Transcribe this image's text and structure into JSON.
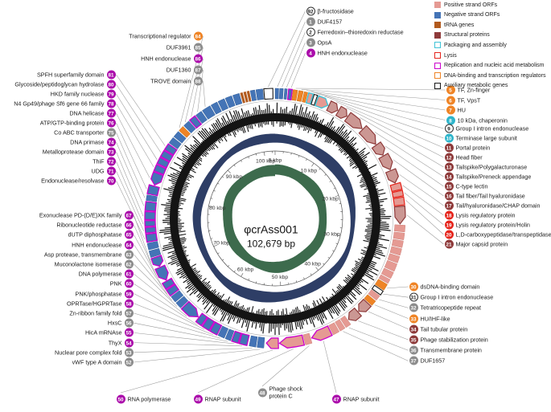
{
  "figure": {
    "center": {
      "name": "φcrAss001",
      "size": "102,679 bp"
    },
    "scale_ticks": [
      "0 kbp",
      "10 kbp",
      "20 kbp",
      "30 kbp",
      "40 kbp",
      "50 kbp",
      "60 kbp",
      "70 kbp",
      "80 kbp",
      "90 kbp",
      "100 kbp"
    ]
  },
  "colors": {
    "pos": "#e59a93",
    "neg": "#4474b6",
    "trna": "#b25a1d",
    "str_fill": "#cb9793",
    "str_stroke": "#8e3a3a",
    "pak_stroke": "#3fc3d7",
    "lys_stroke": "#e5251c",
    "rep_stroke": "#cc00cc",
    "reg": "#ef8426",
    "aux_stroke": "#1a1a1a",
    "navy_ring": "#2e3e66",
    "green_ring": "#3d6b4d",
    "badge": {
      "rep": "#ab0dab",
      "reg": "#ef8426",
      "str": "#8e3a3a",
      "pak": "#2fb5cb",
      "lys": "#e5251c",
      "plain": "#8c8c8c",
      "open": "#ffffff"
    }
  },
  "legend": {
    "items": [
      {
        "label": "Positive strand ORFs",
        "type": "fill",
        "color": "#e59a93"
      },
      {
        "label": "Negative strand ORFs",
        "type": "fill",
        "color": "#4474b6"
      },
      {
        "label": "tRNA genes",
        "type": "fill",
        "color": "#b25a1d"
      },
      {
        "label": "Structural proteins",
        "type": "fill",
        "color": "#8e3a3a"
      },
      {
        "label": "Packaging and assembly",
        "type": "outline",
        "color": "#3fc3d7"
      },
      {
        "label": "Lysis",
        "type": "outline",
        "color": "#e5251c"
      },
      {
        "label": "Replication and nucleic acid metabolism",
        "type": "outline",
        "color": "#cc00cc"
      },
      {
        "label": "DNA-binding and transcription regulators",
        "type": "outline",
        "color": "#ef8426"
      },
      {
        "label": "Auxiliary metabolic genes",
        "type": "outline",
        "color": "#1a1a1a"
      }
    ]
  },
  "genome_map": {
    "segments": [
      [
        355,
        359,
        "aux"
      ],
      [
        0,
        1.6,
        "neg"
      ],
      [
        2,
        3.6,
        "neg"
      ],
      [
        4.2,
        5.4,
        "neg"
      ],
      [
        6,
        7.6,
        "rep_neg"
      ],
      [
        8,
        10,
        "reg"
      ],
      [
        10.5,
        12.5,
        "reg"
      ],
      [
        13,
        14.5,
        "reg"
      ],
      [
        15,
        17,
        "pak"
      ],
      [
        17.5,
        19,
        "aux"
      ],
      [
        19.5,
        25,
        "pak"
      ],
      [
        25.5,
        30,
        "str"
      ],
      [
        30.5,
        35,
        "str"
      ],
      [
        35.5,
        44,
        "str"
      ],
      [
        44.5,
        53.5,
        "str"
      ],
      [
        54,
        59.5,
        "str"
      ],
      [
        60,
        67,
        "str"
      ],
      [
        67.5,
        73.5,
        "str"
      ],
      [
        74,
        77,
        "lys"
      ],
      [
        77.5,
        80,
        "lys"
      ],
      [
        80.5,
        84,
        "lys"
      ],
      [
        84.5,
        92.5,
        "str"
      ],
      [
        93,
        96,
        "pos"
      ],
      [
        96.5,
        99.5,
        "pos"
      ],
      [
        100,
        103,
        "pos"
      ],
      [
        103.5,
        106.5,
        "pos"
      ],
      [
        107,
        110,
        "pos"
      ],
      [
        110.5,
        114,
        "pos"
      ],
      [
        114.5,
        117.5,
        "pos"
      ],
      [
        118,
        120,
        "pos"
      ],
      [
        120.5,
        123.5,
        "reg"
      ],
      [
        124,
        126,
        "aux"
      ],
      [
        126.5,
        129,
        "pos"
      ],
      [
        129.5,
        132,
        "reg"
      ],
      [
        132.5,
        138,
        "str"
      ],
      [
        138.5,
        144,
        "str"
      ],
      [
        144.5,
        147,
        "pos"
      ],
      [
        147.5,
        150,
        "pos"
      ],
      [
        150.5,
        153.5,
        "pos"
      ],
      [
        154,
        163,
        "rep_pos"
      ],
      [
        163.5,
        166.5,
        "pos"
      ],
      [
        167,
        178,
        "rep_pos"
      ],
      [
        178.5,
        184,
        "rep_pos"
      ],
      [
        185,
        188,
        "neg"
      ],
      [
        188.5,
        191.5,
        "neg"
      ],
      [
        192.5,
        196,
        "rep_neg"
      ],
      [
        196.5,
        199.5,
        "rep_neg"
      ],
      [
        200,
        202.5,
        "neg"
      ],
      [
        203,
        206,
        "neg"
      ],
      [
        206.5,
        210,
        "rep_neg"
      ],
      [
        210.5,
        214,
        "rep_neg"
      ],
      [
        214.5,
        217.5,
        "rep_neg"
      ],
      [
        218,
        226,
        "rep_neg"
      ],
      [
        226.5,
        229.5,
        "neg"
      ],
      [
        230,
        233,
        "neg"
      ],
      [
        233.5,
        236.5,
        "rep_neg"
      ],
      [
        237,
        240,
        "rep_neg"
      ],
      [
        240.5,
        247,
        "rep_neg"
      ],
      [
        247.5,
        252,
        "rep_neg"
      ],
      [
        252.5,
        255.5,
        "neg"
      ],
      [
        256,
        259,
        "neg"
      ],
      [
        259.5,
        263,
        "rep_neg"
      ],
      [
        263.5,
        266,
        "rep_neg"
      ],
      [
        266.5,
        269,
        "rep_neg"
      ],
      [
        269.5,
        273,
        "rep_neg"
      ],
      [
        273.5,
        277.5,
        "rep_neg"
      ],
      [
        278,
        280.5,
        "neg"
      ],
      [
        281,
        285,
        "rep_neg"
      ],
      [
        285.5,
        291,
        "rep_neg"
      ],
      [
        291.5,
        294.5,
        "rep_neg"
      ],
      [
        295,
        298,
        "rep_neg"
      ],
      [
        298.5,
        301.5,
        "rep_neg"
      ],
      [
        302,
        305,
        "rep_neg"
      ],
      [
        305.5,
        308.5,
        "neg"
      ],
      [
        309,
        312,
        "neg"
      ],
      [
        312.5,
        315,
        "reg"
      ],
      [
        315.5,
        318.5,
        "neg"
      ],
      [
        319,
        322,
        "rep_neg"
      ],
      [
        322.5,
        325.5,
        "neg"
      ],
      [
        326,
        330,
        "neg"
      ],
      [
        330.5,
        333.5,
        "neg"
      ],
      [
        334,
        337,
        "neg"
      ],
      [
        337.5,
        340.5,
        "neg"
      ],
      [
        341,
        344,
        "neg"
      ],
      [
        344.5,
        345.5,
        "trna"
      ],
      [
        346,
        347,
        "trna"
      ],
      [
        347.5,
        348.5,
        "trna"
      ],
      [
        349,
        351,
        "neg"
      ],
      [
        351.5,
        354.5,
        "neg"
      ]
    ]
  },
  "gene_labels": {
    "top_center": [
      {
        "n": "92",
        "text": "β-fructosidase",
        "cat": "open",
        "angle": 357
      },
      {
        "n": "1",
        "text": "DUF4157",
        "cat": "plain",
        "angle": 1
      },
      {
        "n": "2",
        "text": "Ferredoxin–thioredoxin reductase",
        "cat": "open",
        "angle": 3
      },
      {
        "n": "3",
        "text": "OpsA",
        "cat": "plain",
        "angle": 5
      },
      {
        "n": "4",
        "text": "HNH endonuclease",
        "cat": "rep",
        "angle": 7
      }
    ],
    "top_left": [
      {
        "n": "84",
        "text": "Transcriptional regulator",
        "cat": "reg",
        "angle": 313.5
      },
      {
        "n": "85",
        "text": "DUF3961",
        "cat": "plain",
        "angle": 317
      },
      {
        "n": "86",
        "text": "HNH endonuclease",
        "cat": "rep",
        "angle": 320.5
      },
      {
        "n": "87",
        "text": "DUF1360",
        "cat": "plain",
        "angle": 324
      },
      {
        "n": "88",
        "text": "TROVE domain",
        "cat": "plain",
        "angle": 328
      }
    ],
    "top_right": [
      {
        "n": "5",
        "text": "TF, Zn-finger",
        "cat": "reg",
        "angle": 9
      },
      {
        "n": "6",
        "text": "TF, VpsT",
        "cat": "reg",
        "angle": 11.5
      },
      {
        "n": "7",
        "text": "HU",
        "cat": "reg",
        "angle": 13.7
      },
      {
        "n": "8",
        "text": "10 kDa, chaperonin",
        "cat": "pak",
        "angle": 16
      }
    ],
    "right_upper": [
      {
        "n": "9",
        "text": "Group I intron endonuclease",
        "cat": "open",
        "angle": 18.2
      },
      {
        "n": "10",
        "text": "Terminase large subunit",
        "cat": "pak",
        "angle": 22
      },
      {
        "n": "11",
        "text": "Portal protein",
        "cat": "str",
        "angle": 27.7
      },
      {
        "n": "12",
        "text": "Head fiber",
        "cat": "str",
        "angle": 32.7
      },
      {
        "n": "13",
        "text": "Tailspike/Polygalacturonase",
        "cat": "str",
        "angle": 40
      },
      {
        "n": "14",
        "text": "Tailspike/Preneck appendage",
        "cat": "str",
        "angle": 49
      },
      {
        "n": "15",
        "text": "C-type lectin",
        "cat": "str",
        "angle": 56.7
      },
      {
        "n": "16",
        "text": "Tail fiber/Tail hyaluronidase",
        "cat": "str",
        "angle": 63.5
      },
      {
        "n": "17",
        "text": "Tail/hyaluronidase/CHAP domain",
        "cat": "str",
        "angle": 70.5
      },
      {
        "n": "18",
        "text": "Lysis regulatory protein",
        "cat": "lys",
        "angle": 75.5
      },
      {
        "n": "19",
        "text": "Lysis regulatory protein/Holin",
        "cat": "lys",
        "angle": 78.7
      },
      {
        "n": "20",
        "text": "L,D-carboxypeptidase/transpeptidase",
        "cat": "lys",
        "angle": 82
      },
      {
        "n": "21",
        "text": "Major capsid protein",
        "cat": "str",
        "angle": 88.5
      }
    ],
    "right_lower": [
      {
        "n": "30",
        "text": "dsDNA-binding domain",
        "cat": "reg",
        "angle": 122
      },
      {
        "n": "31",
        "text": "Group I intron endonuclease",
        "cat": "open",
        "angle": 125
      },
      {
        "n": "32",
        "text": "Tetratricopeptide repeat",
        "cat": "plain",
        "angle": 128
      },
      {
        "n": "33",
        "text": "HU/IHF-like",
        "cat": "reg",
        "angle": 131
      },
      {
        "n": "34",
        "text": "Tail tubular protein",
        "cat": "str",
        "angle": 135
      },
      {
        "n": "35",
        "text": "Phage stabilization protein",
        "cat": "str",
        "angle": 141
      },
      {
        "n": "36",
        "text": "Transmembrane protein",
        "cat": "plain",
        "angle": 146
      },
      {
        "n": "37",
        "text": "DUF1657",
        "cat": "plain",
        "angle": 149
      }
    ],
    "bottom": [
      {
        "n": "50",
        "text": "RNA polymerase",
        "cat": "rep",
        "angle": 181
      },
      {
        "n": "49",
        "text": "RNAP subunit",
        "cat": "rep",
        "angle": 172
      },
      {
        "n": "48",
        "text": "Phage shock protein C",
        "cat": "plain",
        "angle": 165,
        "wrap": true
      },
      {
        "n": "47",
        "text": "RNAP subunit",
        "cat": "rep",
        "angle": 158.5
      }
    ],
    "left_lower": [
      {
        "n": "67",
        "text": "Exonuclease PD-(D/E)XK family",
        "cat": "rep",
        "angle": 250
      },
      {
        "n": "66",
        "text": "Ribonucleotide reductase",
        "cat": "rep",
        "angle": 244
      },
      {
        "n": "65",
        "text": "dUTP diphosphatase",
        "cat": "rep",
        "angle": 238.5
      },
      {
        "n": "64",
        "text": "HNH endonuclease",
        "cat": "rep",
        "angle": 235
      },
      {
        "n": "63",
        "text": "Asp protease, transmembrane",
        "cat": "plain",
        "angle": 231.5
      },
      {
        "n": "62",
        "text": "Muconolactone isomerase",
        "cat": "plain",
        "angle": 228
      },
      {
        "n": "61",
        "text": "DNA polymerase",
        "cat": "rep",
        "angle": 222
      },
      {
        "n": "60",
        "text": "PNK",
        "cat": "rep",
        "angle": 216
      },
      {
        "n": "59",
        "text": "PNK/phosphatase",
        "cat": "rep",
        "angle": 212.5
      },
      {
        "n": "58",
        "text": "OPRTase/HGPRTase",
        "cat": "rep",
        "angle": 208
      },
      {
        "n": "57",
        "text": "Zn-ribbon family fold",
        "cat": "plain",
        "angle": 204.5
      },
      {
        "n": "56",
        "text": "HxsC",
        "cat": "plain",
        "angle": 201
      },
      {
        "n": "55",
        "text": "HicA mRNAse",
        "cat": "rep",
        "angle": 198
      },
      {
        "n": "54",
        "text": "ThyX",
        "cat": "rep",
        "angle": 194.5
      },
      {
        "n": "53",
        "text": "Nuclear pore complex fold",
        "cat": "plain",
        "angle": 190
      },
      {
        "n": "52",
        "text": "vWF type A domain",
        "cat": "plain",
        "angle": 186.5
      }
    ],
    "left_upper": [
      {
        "n": "81",
        "text": "SPFH superfamily domain",
        "cat": "rep",
        "angle": 303.5
      },
      {
        "n": "80",
        "text": "Glycoside/peptidoglycan hydrolase",
        "cat": "rep",
        "angle": 300
      },
      {
        "n": "79",
        "text": "HKD family nuclease",
        "cat": "rep",
        "angle": 296.5
      },
      {
        "n": "78",
        "text": "N4 Gp49/phage Sf6 gene 66 family",
        "cat": "rep",
        "angle": 293
      },
      {
        "n": "77",
        "text": "DNA helicase",
        "cat": "rep",
        "angle": 288
      },
      {
        "n": "76",
        "text": "ATP/GTP-binding protein",
        "cat": "rep",
        "angle": 283
      },
      {
        "n": "75",
        "text": "Co ABC transporter",
        "cat": "plain",
        "angle": 279
      },
      {
        "n": "74",
        "text": "DNA primase",
        "cat": "rep",
        "angle": 275.5
      },
      {
        "n": "73",
        "text": "Metalloprotease domain",
        "cat": "rep",
        "angle": 271
      },
      {
        "n": "72",
        "text": "ThiF",
        "cat": "rep",
        "angle": 267.5
      },
      {
        "n": "71",
        "text": "UDG",
        "cat": "rep",
        "angle": 264.5
      },
      {
        "n": "70",
        "text": "Endonuclease/resolvase",
        "cat": "rep",
        "angle": 261
      }
    ]
  }
}
